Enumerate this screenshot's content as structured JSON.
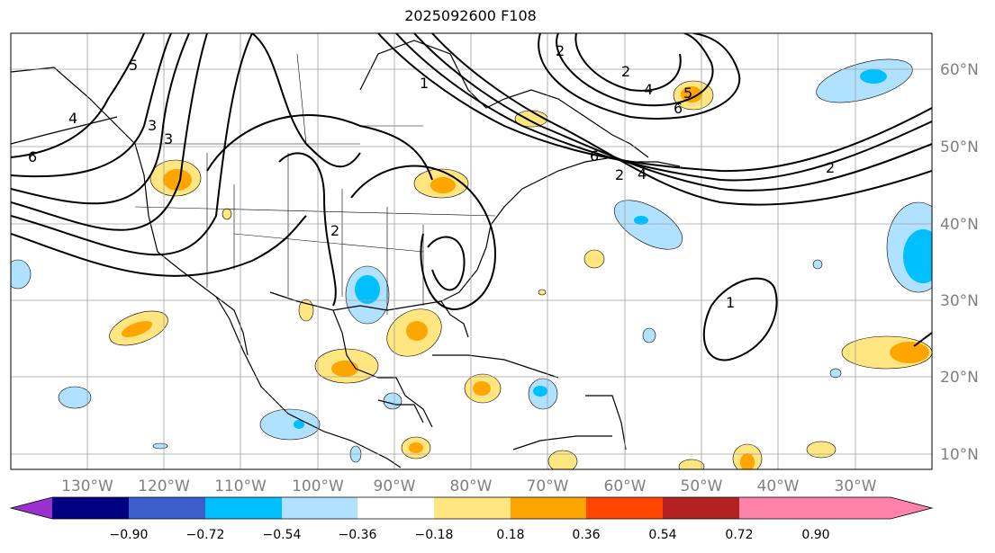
{
  "map": {
    "title": "2025092600 F108",
    "lon_labels": [
      "130°W",
      "120°W",
      "110°W",
      "100°W",
      "90°W",
      "80°W",
      "70°W",
      "60°W",
      "50°W",
      "40°W",
      "30°W"
    ],
    "lat_labels": [
      "60°N",
      "50°N",
      "40°N",
      "30°N",
      "20°N",
      "10°N"
    ],
    "contour_labels": [
      "6",
      "5",
      "4",
      "3",
      "3",
      "2",
      "1",
      "2",
      "4",
      "5",
      "6",
      "6",
      "2",
      "4",
      "2",
      "1",
      "2"
    ],
    "colorbar": {
      "labels": [
        "−0.90",
        "−0.72",
        "−0.54",
        "−0.36",
        "−0.18",
        "0.18",
        "0.36",
        "0.54",
        "0.72",
        "0.90"
      ],
      "colors": [
        "#9932cc",
        "#000080",
        "#3a5fcd",
        "#00bfff",
        "#b0e2ff",
        "#ffffff",
        "#ffe680",
        "#ffa500",
        "#ff4500",
        "#b22222",
        "#ff82ab"
      ]
    }
  }
}
